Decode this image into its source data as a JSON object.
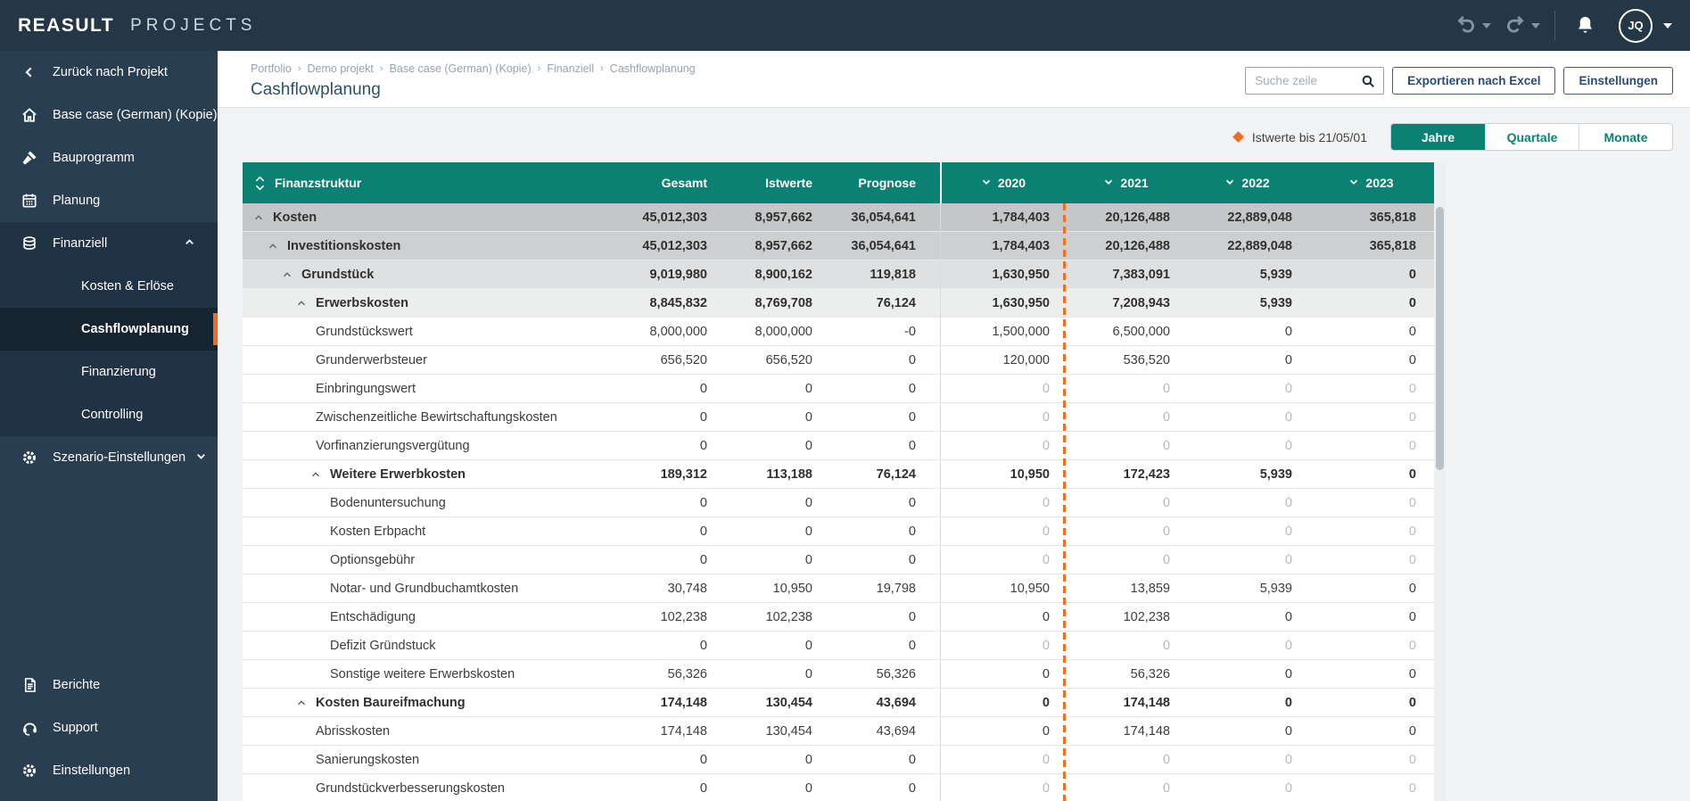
{
  "topbar": {
    "logo_primary": "REASULT",
    "logo_secondary": "PROJECTS",
    "user_initials": "JQ"
  },
  "sidebar": {
    "back_label": "Zurück nach Projekt",
    "items": [
      {
        "icon": "home",
        "label": "Base case (German) (Kopie)"
      },
      {
        "icon": "hammer",
        "label": "Bauprogramm"
      },
      {
        "icon": "calendar",
        "label": "Planung"
      },
      {
        "icon": "coins",
        "label": "Finanziell",
        "expanded": true,
        "children": [
          {
            "label": "Kosten & Erlöse",
            "active": false
          },
          {
            "label": "Cashflowplanung",
            "active": true
          },
          {
            "label": "Finanzierung",
            "active": false
          },
          {
            "label": "Controlling",
            "active": false
          }
        ]
      },
      {
        "icon": "gear",
        "label": "Szenario-Einstellungen",
        "collapsed": true
      }
    ],
    "footer_items": [
      {
        "icon": "report",
        "label": "Berichte"
      },
      {
        "icon": "headset",
        "label": "Support"
      },
      {
        "icon": "gear",
        "label": "Einstellungen"
      }
    ]
  },
  "page": {
    "breadcrumb": [
      "Portfolio",
      "Demo projekt",
      "Base case (German) (Kopie)",
      "Finanziell",
      "Cashflowplanung"
    ],
    "title": "Cashflowplanung",
    "search_placeholder": "Suche zeile",
    "export_button": "Exportieren nach Excel",
    "settings_button": "Einstellungen"
  },
  "toolbar": {
    "legend_label": "Istwerte bis 21/05/01",
    "tabs": [
      {
        "label": "Jahre",
        "active": true
      },
      {
        "label": "Quartale",
        "active": false
      },
      {
        "label": "Monate",
        "active": false
      }
    ]
  },
  "table": {
    "name_column": "Finanzstruktur",
    "value_columns": [
      "Gesamt",
      "Istwerte",
      "Prognose"
    ],
    "year_columns": [
      "2020",
      "2021",
      "2022",
      "2023"
    ],
    "rows": [
      {
        "label": "Kosten",
        "level": 0,
        "group": true,
        "bg": "#c4c6c7",
        "values": [
          "45,012,303",
          "8,957,662",
          "36,054,641",
          "1,784,403",
          "20,126,488",
          "22,889,048",
          "365,818"
        ]
      },
      {
        "label": "Investitionskosten",
        "level": 1,
        "group": true,
        "bg": "#cdcfd0",
        "values": [
          "45,012,303",
          "8,957,662",
          "36,054,641",
          "1,784,403",
          "20,126,488",
          "22,889,048",
          "365,818"
        ]
      },
      {
        "label": "Grundstück",
        "level": 2,
        "group": true,
        "bg": "#dfe0e1",
        "values": [
          "9,019,980",
          "8,900,162",
          "119,818",
          "1,630,950",
          "7,383,091",
          "5,939",
          "0"
        ]
      },
      {
        "label": "Erwerbskosten",
        "level": 3,
        "group": true,
        "bg": "#eceded",
        "values": [
          "8,845,832",
          "8,769,708",
          "76,124",
          "1,630,950",
          "7,208,943",
          "5,939",
          "0"
        ]
      },
      {
        "label": "Grundstückswert",
        "level": 4,
        "group": false,
        "bg": "#ffffff",
        "values": [
          "8,000,000",
          "8,000,000",
          "-0",
          "1,500,000",
          "6,500,000",
          "0",
          "0"
        ]
      },
      {
        "label": "Grunderwerbsteuer",
        "level": 4,
        "group": false,
        "bg": "#ffffff",
        "values": [
          "656,520",
          "656,520",
          "0",
          "120,000",
          "536,520",
          "0",
          "0"
        ]
      },
      {
        "label": "Einbringungswert",
        "level": 4,
        "group": false,
        "bg": "#ffffff",
        "muted": true,
        "values": [
          "0",
          "0",
          "0",
          "0",
          "0",
          "0",
          "0"
        ]
      },
      {
        "label": "Zwischenzeitliche Bewirtschaftungskosten",
        "level": 4,
        "group": false,
        "bg": "#ffffff",
        "muted": true,
        "values": [
          "0",
          "0",
          "0",
          "0",
          "0",
          "0",
          "0"
        ]
      },
      {
        "label": "Vorfinanzierungsvergütung",
        "level": 4,
        "group": false,
        "bg": "#ffffff",
        "muted": true,
        "values": [
          "0",
          "0",
          "0",
          "0",
          "0",
          "0",
          "0"
        ]
      },
      {
        "label": "Weitere Erwerbkosten",
        "level": 4,
        "group": true,
        "bg": "#ffffff",
        "values": [
          "189,312",
          "113,188",
          "76,124",
          "10,950",
          "172,423",
          "5,939",
          "0"
        ]
      },
      {
        "label": "Bodenuntersuchung",
        "level": 5,
        "group": false,
        "bg": "#ffffff",
        "muted": true,
        "values": [
          "0",
          "0",
          "0",
          "0",
          "0",
          "0",
          "0"
        ]
      },
      {
        "label": "Kosten Erbpacht",
        "level": 5,
        "group": false,
        "bg": "#ffffff",
        "muted": true,
        "values": [
          "0",
          "0",
          "0",
          "0",
          "0",
          "0",
          "0"
        ]
      },
      {
        "label": "Optionsgebühr",
        "level": 5,
        "group": false,
        "bg": "#ffffff",
        "muted": true,
        "values": [
          "0",
          "0",
          "0",
          "0",
          "0",
          "0",
          "0"
        ]
      },
      {
        "label": "Notar- und Grundbuchamtkosten",
        "level": 5,
        "group": false,
        "bg": "#ffffff",
        "values": [
          "30,748",
          "10,950",
          "19,798",
          "10,950",
          "13,859",
          "5,939",
          "0"
        ]
      },
      {
        "label": "Entschädigung",
        "level": 5,
        "group": false,
        "bg": "#ffffff",
        "values": [
          "102,238",
          "102,238",
          "0",
          "0",
          "102,238",
          "0",
          "0"
        ]
      },
      {
        "label": "Defizit Gründstuck",
        "level": 5,
        "group": false,
        "bg": "#ffffff",
        "muted": true,
        "values": [
          "0",
          "0",
          "0",
          "0",
          "0",
          "0",
          "0"
        ]
      },
      {
        "label": "Sonstige weitere Erwerbskosten",
        "level": 5,
        "group": false,
        "bg": "#ffffff",
        "values": [
          "56,326",
          "0",
          "56,326",
          "0",
          "56,326",
          "0",
          "0"
        ]
      },
      {
        "label": "Kosten Baureifmachung",
        "level": 3,
        "group": true,
        "bg": "#ffffff",
        "values": [
          "174,148",
          "130,454",
          "43,694",
          "0",
          "174,148",
          "0",
          "0"
        ]
      },
      {
        "label": "Abrisskosten",
        "level": 4,
        "group": false,
        "bg": "#ffffff",
        "values": [
          "174,148",
          "130,454",
          "43,694",
          "0",
          "174,148",
          "0",
          "0"
        ]
      },
      {
        "label": "Sanierungskosten",
        "level": 4,
        "group": false,
        "bg": "#ffffff",
        "muted": true,
        "values": [
          "0",
          "0",
          "0",
          "0",
          "0",
          "0",
          "0"
        ]
      },
      {
        "label": "Grundstückverbesserungskosten",
        "level": 4,
        "group": false,
        "bg": "#ffffff",
        "muted": true,
        "values": [
          "0",
          "0",
          "0",
          "0",
          "0",
          "0",
          "0"
        ]
      }
    ]
  },
  "colors": {
    "teal": "#0b8173",
    "orange": "#f06a21",
    "navy": "#233746",
    "button_blue": "#2c4a73"
  }
}
